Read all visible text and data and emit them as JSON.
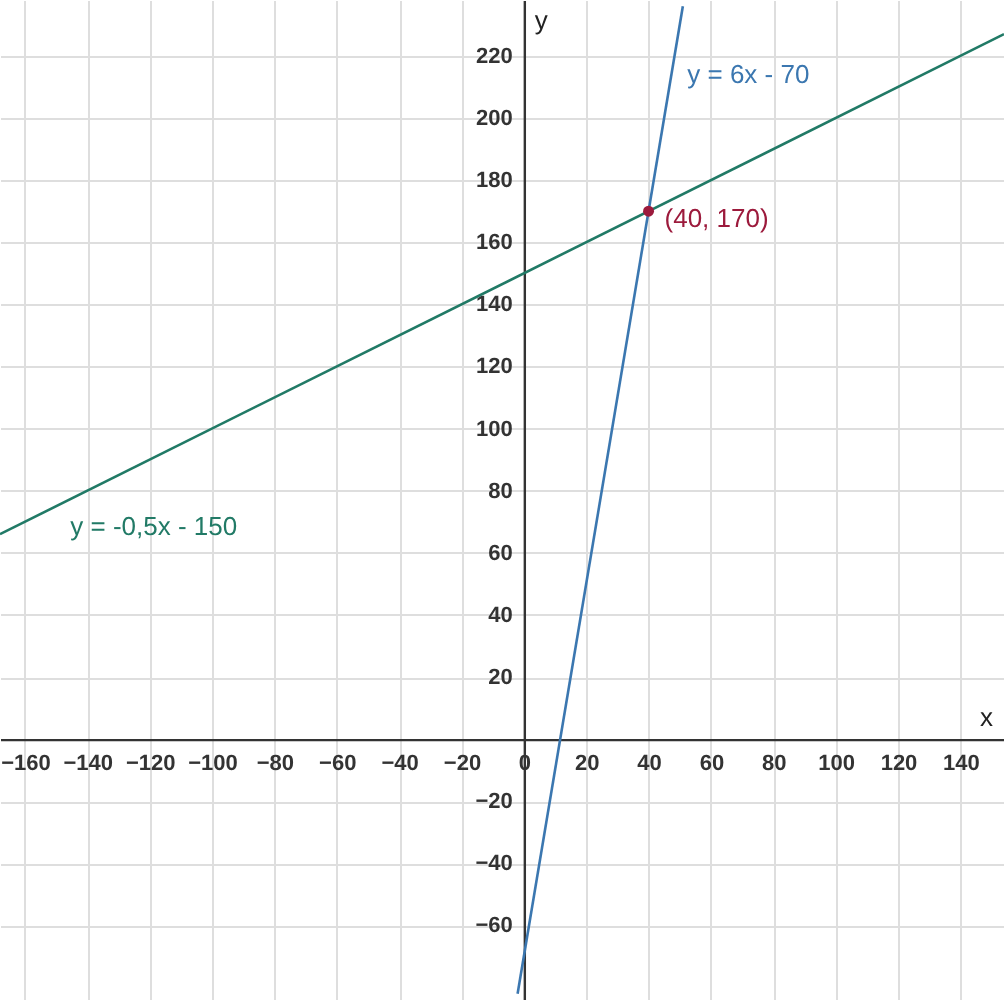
{
  "chart_data": {
    "type": "line",
    "xlabel": "x",
    "ylabel": "y",
    "xlim": [
      -168,
      154
    ],
    "ylim": [
      -84,
      238
    ],
    "xticks": [
      -160,
      -140,
      -120,
      -100,
      -80,
      -60,
      -40,
      -20,
      0,
      20,
      40,
      60,
      80,
      100,
      120,
      140
    ],
    "yticks": [
      -60,
      -40,
      -20,
      20,
      40,
      60,
      80,
      100,
      120,
      140,
      160,
      180,
      200,
      220
    ],
    "grid": true,
    "series": [
      {
        "name": "y = 6x - 70",
        "color": "#3b77b0",
        "x": [
          -2,
          51
        ],
        "values": [
          -82,
          236
        ]
      },
      {
        "name": "y = -0,5x - 150",
        "color": "#217a66",
        "x": [
          -168,
          154
        ],
        "values": [
          66,
          227
        ]
      },
      {
        "type": "scatter",
        "color": "#9c1a3c",
        "x": [
          40
        ],
        "values": [
          170
        ]
      }
    ],
    "annotations": [
      {
        "text": "(40, 170)",
        "x": 40,
        "y": 170
      }
    ]
  }
}
